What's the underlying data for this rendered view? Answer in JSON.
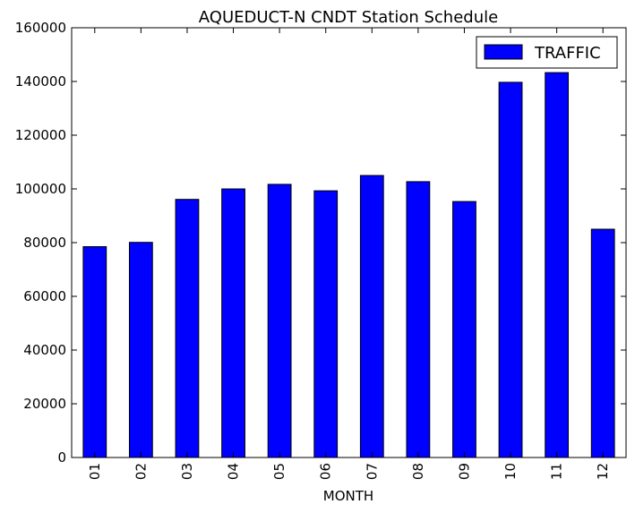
{
  "chart_data": {
    "type": "bar",
    "title": "AQUEDUCT-N CNDT Station Schedule",
    "xlabel": "MONTH",
    "ylabel": "",
    "categories": [
      "01",
      "02",
      "03",
      "04",
      "05",
      "06",
      "07",
      "08",
      "09",
      "10",
      "11",
      "12"
    ],
    "series": [
      {
        "name": "TRAFFIC",
        "values": [
          78500,
          80100,
          96100,
          100000,
          101700,
          99300,
          105000,
          102700,
          95300,
          139700,
          143300,
          85000
        ],
        "color": "#0000ff"
      }
    ],
    "ylim": [
      0,
      160000
    ],
    "yticks": [
      0,
      20000,
      40000,
      60000,
      80000,
      100000,
      120000,
      140000,
      160000
    ],
    "ytick_labels": [
      "0",
      "20000",
      "40000",
      "60000",
      "80000",
      "100000",
      "120000",
      "140000",
      "160000"
    ],
    "grid": false,
    "legend_position": "top-right"
  }
}
